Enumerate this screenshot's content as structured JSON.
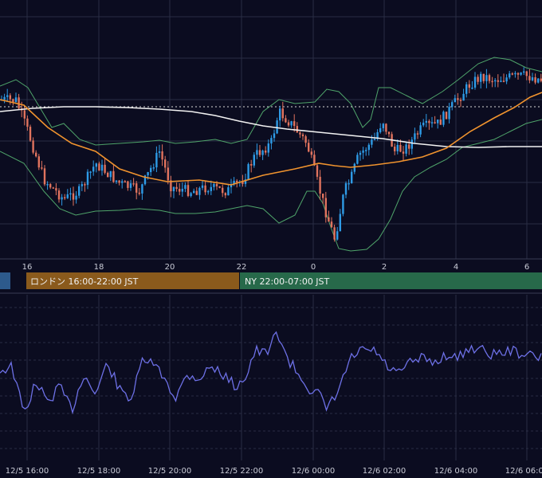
{
  "chart_data": [
    {
      "type": "candlestick",
      "name": "price-panel",
      "x_tick_labels": [
        "16",
        "18",
        "20",
        "22",
        "0",
        "2",
        "4",
        "6"
      ],
      "indicators": [
        "bollinger-bands",
        "moving-average-orange",
        "moving-average-white",
        "dotted-reference-line"
      ],
      "grid": true
    },
    {
      "type": "line",
      "name": "oscillator-panel",
      "x_tick_labels": [
        "12/5 16:00",
        "12/5 18:00",
        "12/5 20:00",
        "12/5 22:00",
        "12/6 00:00",
        "12/6 02:00",
        "12/6 04:00",
        "12/6 06:00"
      ],
      "grid": true
    }
  ],
  "sessions": [
    {
      "label": "ロンドン 16:00-22:00 JST",
      "color": "#8a5a1c"
    },
    {
      "label": "NY 22:00-07:00 JST",
      "color": "#27694a"
    }
  ],
  "colors": {
    "background": "#0b0c20",
    "grid": "#2a2d44",
    "up_candle": "#2e9be6",
    "down_candle": "#e0735e",
    "bollinger": "#4fa46a",
    "ma_orange": "#f0932e",
    "ma_white": "#f2f2f2",
    "oscillator": "#6d70e6",
    "tokyo_session_stub": "#2d5a8c"
  }
}
